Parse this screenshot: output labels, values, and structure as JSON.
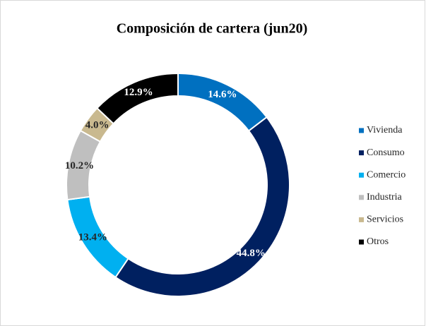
{
  "chart_data": {
    "type": "donut",
    "title": "Composición de cartera (jun20)",
    "categories": [
      "Vivienda",
      "Consumo",
      "Comercio",
      "Industria",
      "Servicios",
      "Otros"
    ],
    "values": [
      14.6,
      44.8,
      13.4,
      10.2,
      4.0,
      12.9
    ],
    "value_labels": [
      "14.6%",
      "44.8%",
      "13.4%",
      "10.2%",
      "4.0%",
      "12.9%"
    ],
    "colors": [
      "#0070c0",
      "#002060",
      "#00b0f0",
      "#bfbfbf",
      "#c9b98f",
      "#000000"
    ],
    "legend": "right"
  }
}
